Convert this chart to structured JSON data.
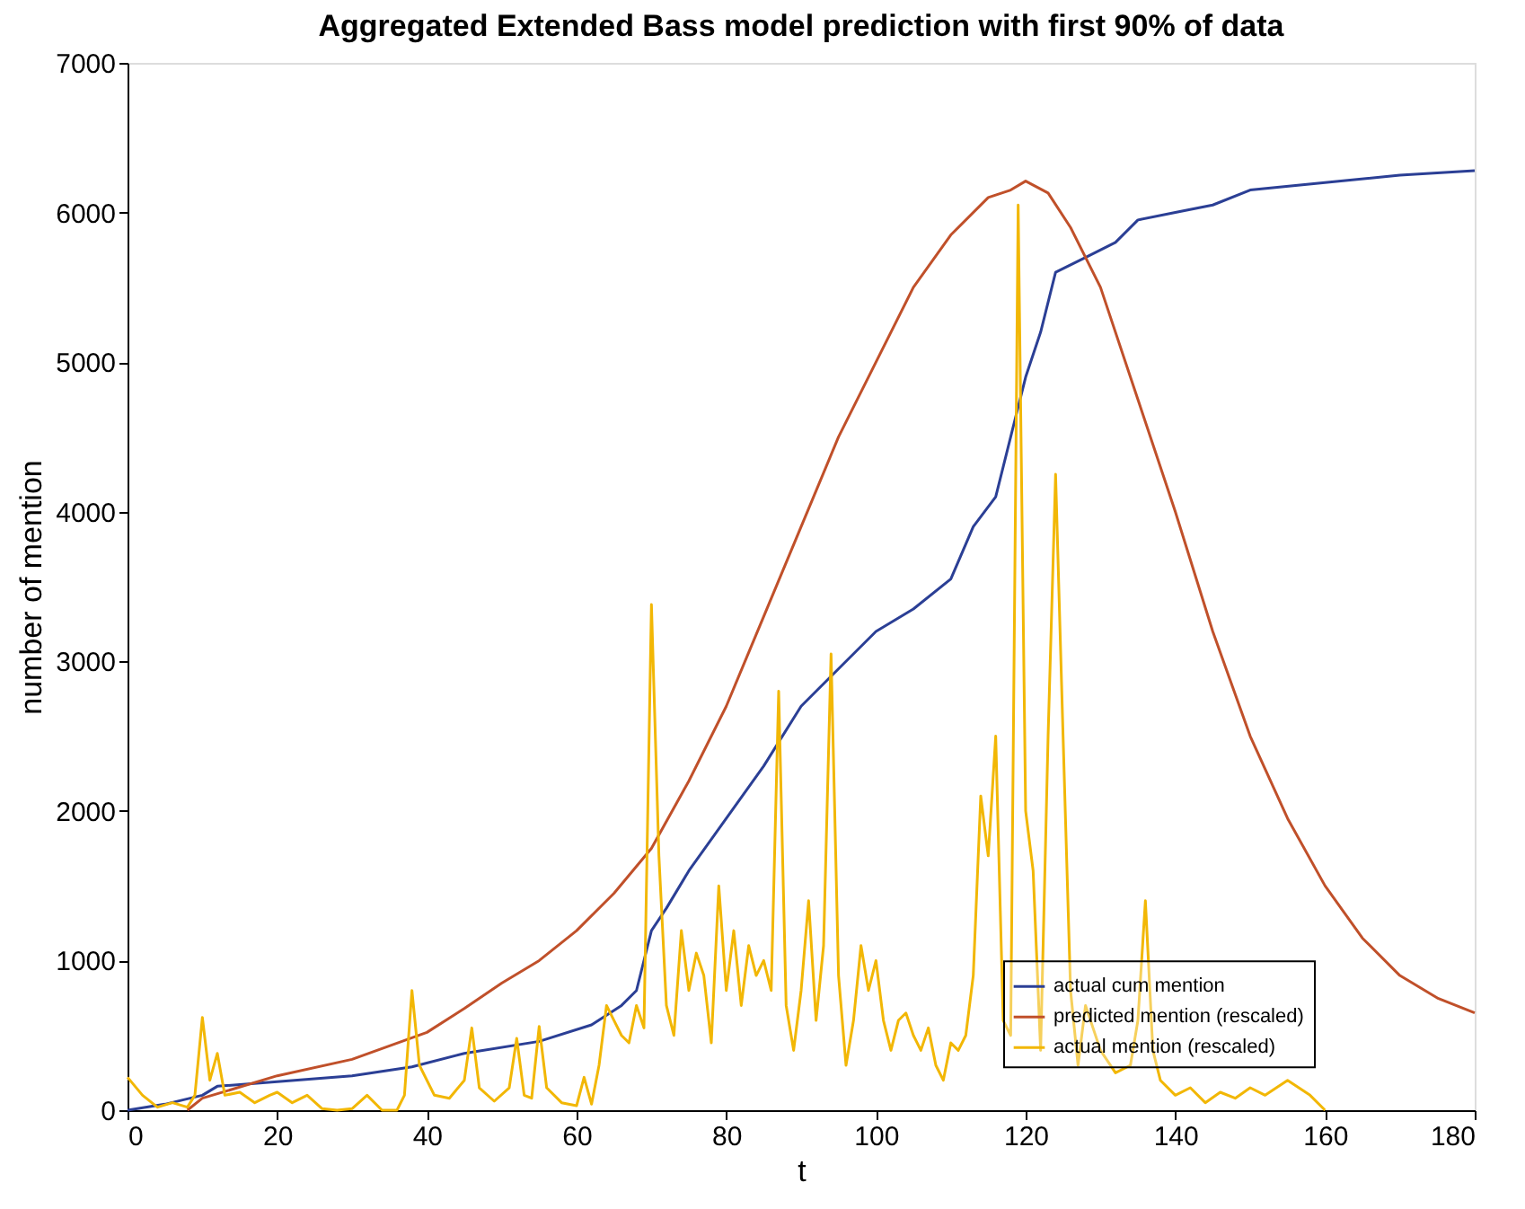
{
  "chart_data": {
    "type": "line",
    "title": "Aggregated Extended Bass model prediction with first 90% of data",
    "xlabel": "t",
    "ylabel": "number of mention",
    "xlim": [
      0,
      180
    ],
    "xticks": [
      0,
      20,
      40,
      60,
      80,
      100,
      120,
      140,
      160,
      180
    ],
    "ylim": [
      0,
      7000
    ],
    "yticks": [
      0,
      1000,
      2000,
      3000,
      4000,
      5000,
      6000,
      7000
    ],
    "grid": false,
    "legend": "bottom right",
    "marker": "none",
    "line_style": "solid",
    "series": [
      {
        "name": "actual cum mention",
        "color": "#2b3f95",
        "x": [
          0,
          5,
          10,
          12,
          20,
          30,
          38,
          45,
          55,
          62,
          66,
          68,
          70,
          72,
          75,
          80,
          85,
          90,
          93,
          96,
          100,
          105,
          110,
          113,
          116,
          118,
          120,
          122,
          124,
          128,
          132,
          135,
          140,
          145,
          150,
          160,
          170,
          180
        ],
        "values": [
          0,
          40,
          100,
          160,
          190,
          230,
          290,
          380,
          460,
          570,
          700,
          800,
          1200,
          1350,
          1600,
          1950,
          2300,
          2700,
          2850,
          3000,
          3200,
          3350,
          3550,
          3900,
          4100,
          4500,
          4900,
          5200,
          5600,
          5700,
          5800,
          5950,
          6000,
          6050,
          6150,
          6200,
          6250,
          6280
        ]
      },
      {
        "name": "predicted mention (rescaled)",
        "color": "#c0502a",
        "x": [
          8,
          10,
          20,
          30,
          40,
          45,
          50,
          55,
          60,
          65,
          70,
          75,
          80,
          85,
          90,
          95,
          100,
          105,
          110,
          115,
          118,
          120,
          123,
          126,
          130,
          135,
          140,
          145,
          150,
          155,
          160,
          165,
          170,
          175,
          180
        ],
        "values": [
          0,
          80,
          230,
          340,
          520,
          680,
          850,
          1000,
          1200,
          1450,
          1750,
          2200,
          2700,
          3300,
          3900,
          4500,
          5000,
          5500,
          5850,
          6100,
          6150,
          6210,
          6130,
          5900,
          5500,
          4750,
          4000,
          3200,
          2500,
          1950,
          1500,
          1150,
          900,
          750,
          650
        ]
      },
      {
        "name": "actual mention (rescaled)",
        "color": "#f2b705",
        "x": [
          0,
          2,
          4,
          6,
          8,
          9,
          10,
          11,
          12,
          13,
          15,
          17,
          19,
          20,
          22,
          24,
          26,
          28,
          30,
          32,
          34,
          36,
          37,
          38,
          39,
          41,
          43,
          45,
          46,
          47,
          49,
          51,
          52,
          53,
          54,
          55,
          56,
          58,
          60,
          61,
          62,
          63,
          64,
          65,
          66,
          67,
          68,
          69,
          70,
          71,
          72,
          73,
          74,
          75,
          76,
          77,
          78,
          79,
          80,
          81,
          82,
          83,
          84,
          85,
          86,
          87,
          88,
          89,
          90,
          91,
          92,
          93,
          94,
          95,
          96,
          97,
          98,
          99,
          100,
          101,
          102,
          103,
          104,
          105,
          106,
          107,
          108,
          109,
          110,
          111,
          112,
          113,
          114,
          115,
          116,
          117,
          118,
          119,
          120,
          121,
          122,
          123,
          124,
          125,
          126,
          127,
          128,
          130,
          132,
          134,
          135,
          136,
          137,
          138,
          140,
          142,
          144,
          146,
          148,
          150,
          152,
          155,
          158,
          160
        ],
        "values": [
          220,
          100,
          20,
          50,
          20,
          100,
          620,
          200,
          380,
          100,
          120,
          50,
          100,
          120,
          50,
          100,
          10,
          0,
          10,
          100,
          0,
          0,
          100,
          800,
          300,
          100,
          80,
          200,
          550,
          150,
          60,
          150,
          480,
          100,
          80,
          560,
          150,
          50,
          30,
          220,
          40,
          300,
          700,
          600,
          500,
          450,
          700,
          550,
          3380,
          1700,
          700,
          500,
          1200,
          800,
          1050,
          900,
          450,
          1500,
          800,
          1200,
          700,
          1100,
          900,
          1000,
          800,
          2800,
          700,
          400,
          800,
          1400,
          600,
          1100,
          3050,
          900,
          300,
          600,
          1100,
          800,
          1000,
          600,
          400,
          600,
          650,
          500,
          400,
          550,
          300,
          200,
          450,
          400,
          500,
          900,
          2100,
          1700,
          2500,
          600,
          500,
          6050,
          2000,
          1600,
          400,
          2500,
          4250,
          2500,
          800,
          300,
          700,
          400,
          250,
          300,
          600,
          1400,
          400,
          200,
          100,
          150,
          50,
          120,
          80,
          150,
          100,
          200,
          100,
          0
        ]
      }
    ]
  }
}
